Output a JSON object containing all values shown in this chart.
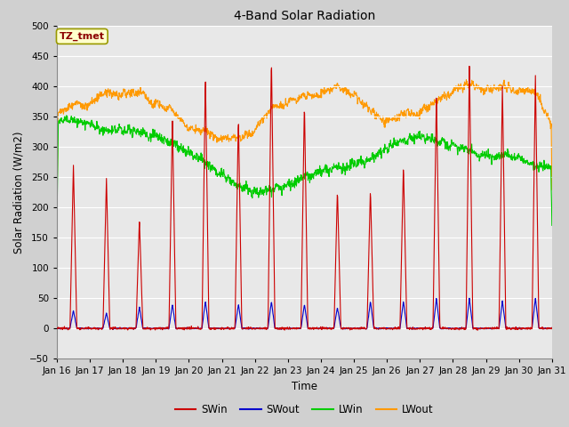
{
  "title": "4-Band Solar Radiation",
  "xlabel": "Time",
  "ylabel": "Solar Radiation (W/m2)",
  "ylim": [
    -50,
    500
  ],
  "yticks": [
    -50,
    0,
    50,
    100,
    150,
    200,
    250,
    300,
    350,
    400,
    450,
    500
  ],
  "x_tick_labels": [
    "Jan 16",
    "Jan 17",
    "Jan 18",
    "Jan 19",
    "Jan 20",
    "Jan 21",
    "Jan 22",
    "Jan 23",
    "Jan 24",
    "Jan 25",
    "Jan 26",
    "Jan 27",
    "Jan 28",
    "Jan 29",
    "Jan 30",
    "Jan 31"
  ],
  "colors": {
    "SWin": "#cc0000",
    "SWout": "#0000cc",
    "LWin": "#00cc00",
    "LWout": "#ff9900"
  },
  "legend_entries": [
    "SWin",
    "SWout",
    "LWin",
    "LWout"
  ],
  "fig_bg_color": "#d0d0d0",
  "plot_bg_color": "#e8e8e8",
  "annotation_text": "TZ_tmet",
  "annotation_bg": "#ffffcc",
  "annotation_border": "#999900",
  "grid_color": "#ffffff",
  "n_days": 15,
  "hours_per_day": 24,
  "day_peaks_SWin": [
    270,
    250,
    180,
    350,
    420,
    350,
    450,
    375,
    230,
    230,
    270,
    390,
    440,
    405,
    420
  ],
  "day_peaks_SWout": [
    30,
    25,
    35,
    40,
    45,
    40,
    45,
    40,
    35,
    45,
    45,
    50,
    50,
    45,
    50
  ],
  "lw_in_nodes_x": [
    0,
    0.5,
    1.0,
    1.5,
    2.0,
    2.5,
    3.0,
    3.5,
    4.0,
    4.5,
    5.0,
    5.5,
    6.0,
    6.5,
    7.0,
    7.5,
    8.0,
    8.5,
    9.0,
    9.5,
    10.0,
    10.5,
    11.0,
    11.5,
    12.0,
    12.5,
    13.0,
    13.5,
    14.0,
    14.5,
    15.0
  ],
  "lw_in_nodes_y": [
    340,
    345,
    335,
    325,
    330,
    325,
    315,
    305,
    290,
    275,
    255,
    235,
    225,
    230,
    235,
    250,
    260,
    265,
    270,
    280,
    300,
    310,
    315,
    310,
    300,
    295,
    285,
    285,
    280,
    270,
    265
  ],
  "lw_out_nodes_x": [
    0,
    0.5,
    1.0,
    1.5,
    2.0,
    2.5,
    3.0,
    3.5,
    4.0,
    4.5,
    5.0,
    5.5,
    6.0,
    6.5,
    7.0,
    7.5,
    8.0,
    8.5,
    9.0,
    9.5,
    10.0,
    10.5,
    11.0,
    11.5,
    12.0,
    12.5,
    13.0,
    13.5,
    14.0,
    14.5,
    15.0
  ],
  "lw_out_nodes_y": [
    355,
    365,
    375,
    385,
    390,
    385,
    375,
    355,
    335,
    320,
    315,
    310,
    330,
    360,
    375,
    380,
    390,
    395,
    390,
    355,
    345,
    350,
    360,
    370,
    395,
    400,
    395,
    395,
    395,
    385,
    340
  ]
}
